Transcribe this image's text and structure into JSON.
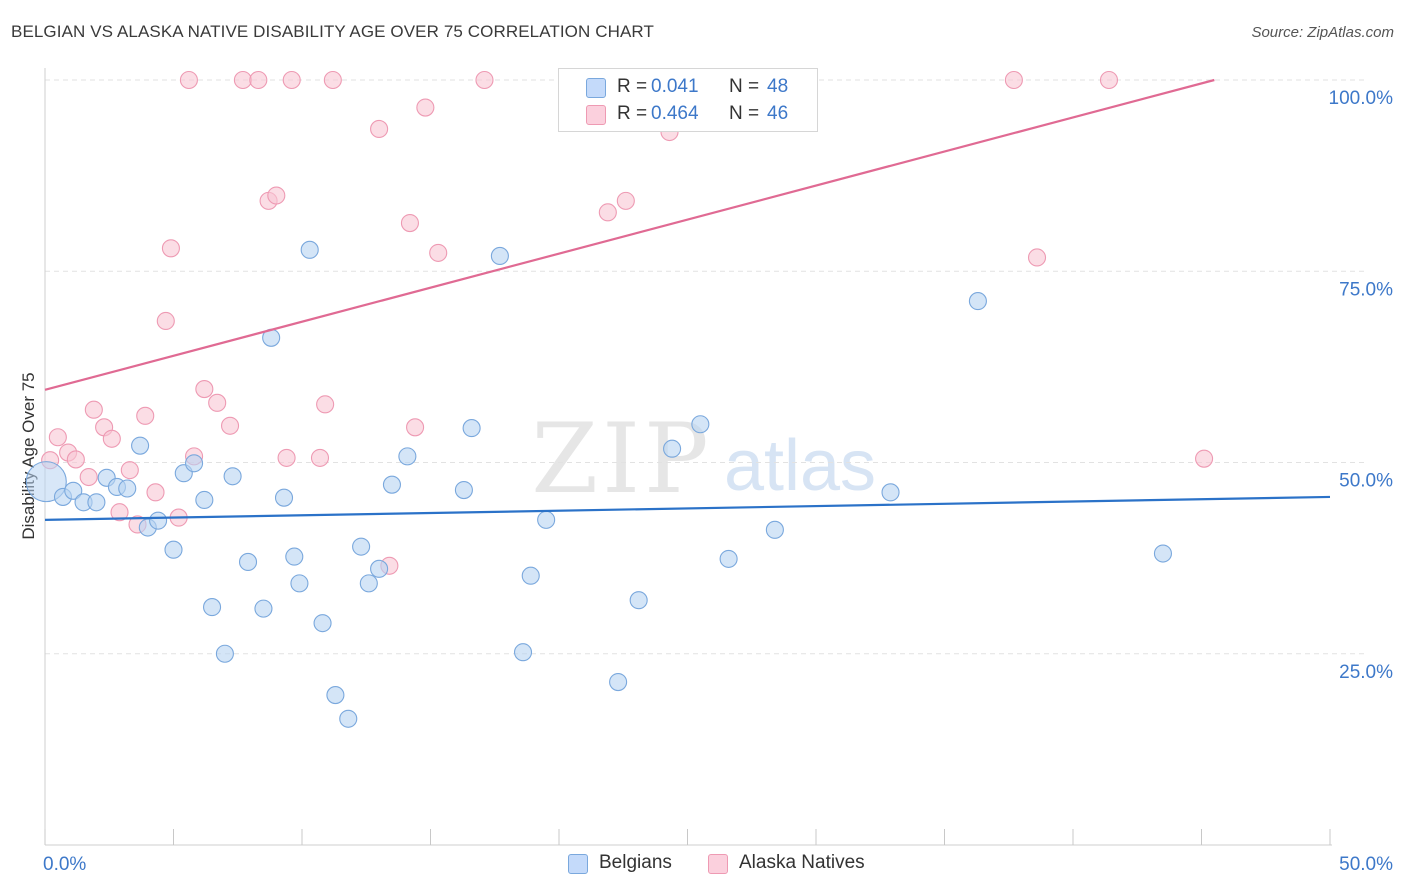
{
  "header": {
    "title": "BELGIAN VS ALASKA NATIVE DISABILITY AGE OVER 75 CORRELATION CHART",
    "source": "Source: ZipAtlas.com"
  },
  "legend": {
    "rows": [
      {
        "r_label": "R =",
        "r_value": "0.041",
        "n_label": "N =",
        "n_value": "48"
      },
      {
        "r_label": "R =",
        "r_value": "0.464",
        "n_label": "N =",
        "n_value": "46"
      }
    ]
  },
  "bottom_legend": {
    "belgians": "Belgians",
    "alaska": "Alaska Natives"
  },
  "watermark": {
    "zip": "ZIP",
    "atlas": "atlas"
  },
  "colors": {
    "belgian_fill": "#b8d3f2",
    "belgian_stroke": "#7aa8dd",
    "belgian_line": "#2b72c8",
    "alaska_fill": "#f8c6d4",
    "alaska_stroke": "#ee9ab3",
    "alaska_line": "#e06a93",
    "axis_label": "#3d78c9",
    "grid": "#e2e2e2"
  },
  "chart_data": {
    "type": "scatter",
    "title": "BELGIAN VS ALASKA NATIVE DISABILITY AGE OVER 75 CORRELATION CHART",
    "xlabel": "",
    "ylabel": "Disability Age Over 75",
    "xlim": [
      0,
      50
    ],
    "ylim": [
      0,
      104
    ],
    "x_tick_labels": [
      {
        "value": 0,
        "label": "0.0%"
      },
      {
        "value": 50,
        "label": "50.0%"
      }
    ],
    "y_tick_labels": [
      {
        "value": 25,
        "label": "25.0%"
      },
      {
        "value": 50,
        "label": "50.0%"
      },
      {
        "value": 75,
        "label": "75.0%"
      },
      {
        "value": 100,
        "label": "100.0%"
      }
    ],
    "grid": true,
    "legend_position": "top-center",
    "series": [
      {
        "name": "Belgians",
        "r": 0.041,
        "n": 48,
        "trend": {
          "x": [
            0,
            50
          ],
          "y": [
            42.5,
            45.5
          ]
        },
        "points": [
          {
            "x": 0.05,
            "y": 47.5,
            "big": true
          },
          {
            "x": 0.7,
            "y": 45.5
          },
          {
            "x": 1.1,
            "y": 46.3
          },
          {
            "x": 1.5,
            "y": 44.8
          },
          {
            "x": 2.0,
            "y": 44.8
          },
          {
            "x": 2.4,
            "y": 48.0
          },
          {
            "x": 2.8,
            "y": 46.8
          },
          {
            "x": 3.2,
            "y": 46.6
          },
          {
            "x": 3.7,
            "y": 52.2
          },
          {
            "x": 4.0,
            "y": 41.5
          },
          {
            "x": 4.4,
            "y": 42.4
          },
          {
            "x": 5.0,
            "y": 38.6
          },
          {
            "x": 5.4,
            "y": 48.6
          },
          {
            "x": 5.8,
            "y": 49.9
          },
          {
            "x": 6.2,
            "y": 45.1
          },
          {
            "x": 6.5,
            "y": 31.1
          },
          {
            "x": 7.0,
            "y": 25.0
          },
          {
            "x": 7.3,
            "y": 48.2
          },
          {
            "x": 7.9,
            "y": 37.0
          },
          {
            "x": 8.5,
            "y": 30.9
          },
          {
            "x": 8.8,
            "y": 66.3
          },
          {
            "x": 9.3,
            "y": 45.4
          },
          {
            "x": 9.7,
            "y": 37.7
          },
          {
            "x": 9.9,
            "y": 34.2
          },
          {
            "x": 10.3,
            "y": 77.8
          },
          {
            "x": 10.8,
            "y": 29.0
          },
          {
            "x": 11.3,
            "y": 19.6
          },
          {
            "x": 11.8,
            "y": 16.5
          },
          {
            "x": 12.3,
            "y": 39.0
          },
          {
            "x": 12.6,
            "y": 34.2
          },
          {
            "x": 13.0,
            "y": 36.1
          },
          {
            "x": 13.5,
            "y": 47.1
          },
          {
            "x": 14.1,
            "y": 50.8
          },
          {
            "x": 16.3,
            "y": 46.4
          },
          {
            "x": 16.6,
            "y": 54.5
          },
          {
            "x": 17.7,
            "y": 77.0
          },
          {
            "x": 18.6,
            "y": 25.2
          },
          {
            "x": 18.9,
            "y": 35.2
          },
          {
            "x": 19.5,
            "y": 42.5
          },
          {
            "x": 22.3,
            "y": 21.3
          },
          {
            "x": 23.1,
            "y": 32.0
          },
          {
            "x": 24.4,
            "y": 51.8
          },
          {
            "x": 25.5,
            "y": 55.0
          },
          {
            "x": 26.6,
            "y": 37.4
          },
          {
            "x": 28.4,
            "y": 41.2
          },
          {
            "x": 32.9,
            "y": 46.1
          },
          {
            "x": 36.3,
            "y": 71.1
          },
          {
            "x": 43.5,
            "y": 38.1
          }
        ]
      },
      {
        "name": "Alaska Natives",
        "r": 0.464,
        "n": 46,
        "trend": {
          "x": [
            0,
            45.5
          ],
          "y": [
            59.5,
            100.0
          ]
        },
        "points": [
          {
            "x": 0.2,
            "y": 50.3
          },
          {
            "x": 0.5,
            "y": 53.3
          },
          {
            "x": 0.9,
            "y": 51.3
          },
          {
            "x": 1.2,
            "y": 50.4
          },
          {
            "x": 1.7,
            "y": 48.1
          },
          {
            "x": 1.9,
            "y": 56.9
          },
          {
            "x": 2.3,
            "y": 54.6
          },
          {
            "x": 2.6,
            "y": 53.1
          },
          {
            "x": 2.9,
            "y": 43.5
          },
          {
            "x": 3.3,
            "y": 49.0
          },
          {
            "x": 3.6,
            "y": 41.9
          },
          {
            "x": 3.9,
            "y": 56.1
          },
          {
            "x": 4.3,
            "y": 46.1
          },
          {
            "x": 4.7,
            "y": 68.5
          },
          {
            "x": 4.9,
            "y": 78.0
          },
          {
            "x": 5.2,
            "y": 42.8
          },
          {
            "x": 5.6,
            "y": 100.0
          },
          {
            "x": 5.8,
            "y": 50.8
          },
          {
            "x": 6.2,
            "y": 59.6
          },
          {
            "x": 6.7,
            "y": 57.8
          },
          {
            "x": 7.2,
            "y": 54.8
          },
          {
            "x": 7.7,
            "y": 100.0
          },
          {
            "x": 8.3,
            "y": 100.0
          },
          {
            "x": 8.7,
            "y": 84.2
          },
          {
            "x": 9.0,
            "y": 84.9
          },
          {
            "x": 9.4,
            "y": 50.6
          },
          {
            "x": 9.6,
            "y": 100.0
          },
          {
            "x": 10.7,
            "y": 50.6
          },
          {
            "x": 10.9,
            "y": 57.6
          },
          {
            "x": 11.2,
            "y": 100.0
          },
          {
            "x": 13.0,
            "y": 93.6
          },
          {
            "x": 13.4,
            "y": 36.5
          },
          {
            "x": 14.2,
            "y": 81.3
          },
          {
            "x": 14.4,
            "y": 54.6
          },
          {
            "x": 14.8,
            "y": 96.4
          },
          {
            "x": 15.3,
            "y": 77.4
          },
          {
            "x": 17.1,
            "y": 100.0
          },
          {
            "x": 20.6,
            "y": 100.0
          },
          {
            "x": 21.9,
            "y": 82.7
          },
          {
            "x": 22.6,
            "y": 84.2
          },
          {
            "x": 24.3,
            "y": 93.2
          },
          {
            "x": 29.1,
            "y": 100.0
          },
          {
            "x": 37.7,
            "y": 100.0
          },
          {
            "x": 38.6,
            "y": 76.8
          },
          {
            "x": 41.4,
            "y": 100.0
          },
          {
            "x": 45.1,
            "y": 50.5
          }
        ]
      }
    ]
  }
}
